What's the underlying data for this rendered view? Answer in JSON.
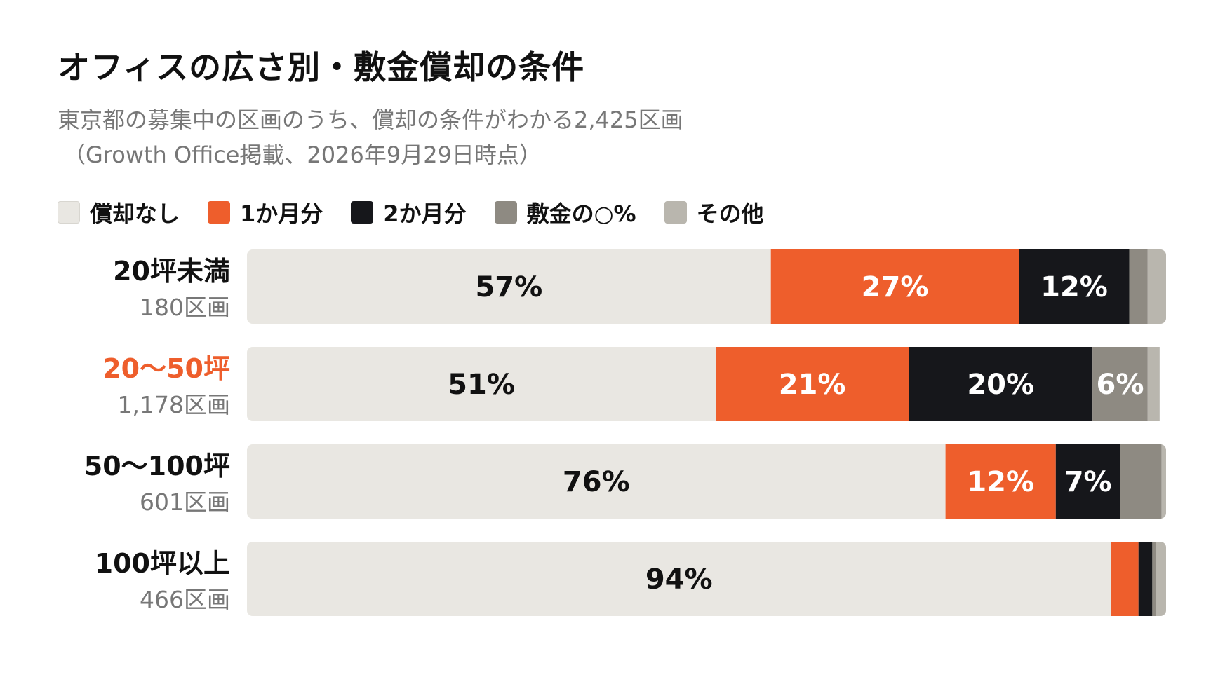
{
  "chart_data": {
    "type": "bar",
    "orientation": "horizontal",
    "stacked": true,
    "title": "オフィスの広さ別・敷金償却の条件",
    "subtitle_lines": [
      "東京都の募集中の区画のうち、償却の条件がわかる2,425区画",
      "（Growth Office掲載、2026年9月29日時点）"
    ],
    "legend_position": "top-left",
    "categories": [
      "20坪未満",
      "20〜50坪",
      "50〜100坪",
      "100坪以上"
    ],
    "category_counts": [
      "180区画",
      "1,178区画",
      "601区画",
      "466区画"
    ],
    "highlight_category": "20〜50坪",
    "series": [
      {
        "name": "償却なし",
        "color": "#e9e7e2",
        "label_color": "#111111",
        "values": [
          57,
          51,
          76,
          94
        ],
        "labels": [
          "57%",
          "51%",
          "76%",
          "94%"
        ]
      },
      {
        "name": "1か月分",
        "color": "#ee5e2c",
        "label_color": "#ffffff",
        "values": [
          27,
          21,
          12,
          3
        ],
        "labels": [
          "27%",
          "21%",
          "12%",
          ""
        ]
      },
      {
        "name": "2か月分",
        "color": "#16171b",
        "label_color": "#ffffff",
        "values": [
          12,
          20,
          7,
          1.5
        ],
        "labels": [
          "12%",
          "20%",
          "7%",
          ""
        ]
      },
      {
        "name": "敷金の○%",
        "color": "#8e8a82",
        "label_color": "#ffffff",
        "values": [
          2,
          6,
          4.5,
          0.4
        ],
        "labels": [
          "",
          "6%",
          "",
          ""
        ]
      },
      {
        "name": "その他",
        "color": "#b9b6ae",
        "label_color": "#ffffff",
        "values": [
          2,
          1.3,
          0.7,
          1.5
        ],
        "labels": [
          "",
          "",
          "",
          ""
        ]
      }
    ],
    "xlim": [
      0,
      100
    ],
    "grid": false
  },
  "colors": {
    "highlight": "#ee5e2c",
    "count_text": "#777777",
    "label_text": "#111111"
  }
}
